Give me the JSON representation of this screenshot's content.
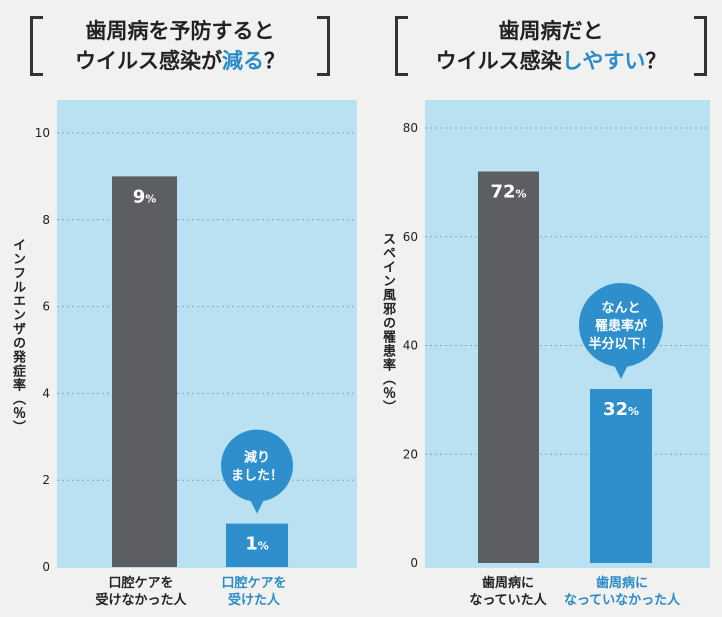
{
  "titles": {
    "left": {
      "line1": "歯周病を予防すると",
      "line2_pre": "ウイルス感染が",
      "line2_hl": "減る",
      "line2_post": "？"
    },
    "right": {
      "line1": "歯周病だと",
      "line2_pre": "ウイルス感染",
      "line2_hl": "しやすい",
      "line2_post": "？"
    }
  },
  "colors": {
    "panel": "#b9e1f2",
    "gray_bar": "#5d5e62",
    "blue_bar": "#2f8fcd",
    "accent": "#2a8bc9"
  },
  "chart_data": [
    {
      "type": "bar",
      "title": "歯周病を予防するとウイルス感染が減る？",
      "ylabel": "インフルエンザの発症率（％）",
      "ylim": [
        0,
        10
      ],
      "yticks": [
        "0",
        "2",
        "4",
        "6",
        "8",
        "10"
      ],
      "categories": [
        "口腔ケアを受けなかった人",
        "口腔ケアを受けた人"
      ],
      "category_lines": [
        [
          "口腔ケアを",
          "受けなかった人"
        ],
        [
          "口腔ケアを",
          "受けた人"
        ]
      ],
      "values": [
        9,
        1
      ],
      "value_labels": [
        "9",
        "1"
      ],
      "unit": "%",
      "callout": {
        "lines": [
          "減り",
          "ました！"
        ],
        "bar_index": 1
      },
      "grid": true
    },
    {
      "type": "bar",
      "title": "歯周病だとウイルス感染しやすい？",
      "ylabel": "スペイン風邪の罹患率（％）",
      "ylim": [
        0,
        80
      ],
      "yticks": [
        "0",
        "20",
        "40",
        "60",
        "80"
      ],
      "categories": [
        "歯周病になっていた人",
        "歯周病になっていなかった人"
      ],
      "category_lines": [
        [
          "歯周病に",
          "なっていた人"
        ],
        [
          "歯周病に",
          "なっていなかった人"
        ]
      ],
      "values": [
        72,
        32
      ],
      "value_labels": [
        "72",
        "32"
      ],
      "unit": "%",
      "callout": {
        "lines": [
          "なんと",
          "罹患率が",
          "半分以下！"
        ],
        "bar_index": 1
      },
      "grid": true
    }
  ]
}
